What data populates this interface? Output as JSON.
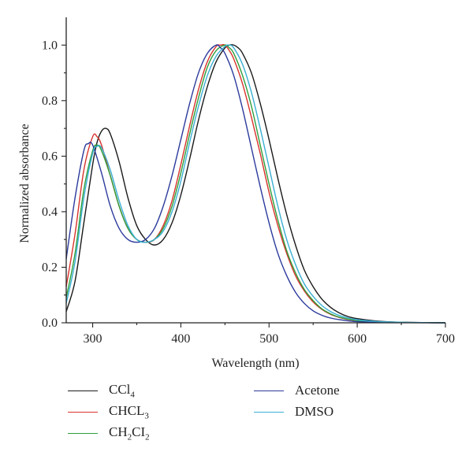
{
  "chart_data": {
    "type": "line",
    "xlabel": "Wavelength (nm)",
    "ylabel": "Normalized absorbance",
    "xlim": [
      270,
      700
    ],
    "ylim": [
      0,
      1.1
    ],
    "xticks": [
      300,
      400,
      500,
      600,
      700
    ],
    "yticks": [
      0.0,
      0.2,
      0.4,
      0.6,
      0.8,
      1.0
    ],
    "xtick_labels": [
      "300",
      "400",
      "500",
      "600",
      "700"
    ],
    "ytick_labels": [
      "0.0",
      "0.2",
      "0.4",
      "0.6",
      "0.8",
      "1.0"
    ],
    "grid": false,
    "legend_position": "below",
    "series": [
      {
        "name": "CCl4",
        "label_parts": [
          "CCl",
          "4",
          ""
        ],
        "color": "#1a1a1a",
        "x": [
          270,
          280,
          290,
          300,
          305,
          310,
          315,
          320,
          330,
          340,
          350,
          360,
          370,
          380,
          390,
          400,
          410,
          420,
          430,
          440,
          450,
          455,
          460,
          465,
          470,
          480,
          490,
          500,
          510,
          520,
          530,
          540,
          550,
          560,
          570,
          580,
          590,
          600,
          620,
          640,
          660,
          680,
          700
        ],
        "y": [
          0.04,
          0.15,
          0.36,
          0.57,
          0.65,
          0.69,
          0.7,
          0.68,
          0.58,
          0.45,
          0.35,
          0.3,
          0.28,
          0.3,
          0.36,
          0.46,
          0.59,
          0.73,
          0.85,
          0.94,
          0.99,
          1.0,
          1.0,
          0.99,
          0.97,
          0.9,
          0.79,
          0.66,
          0.52,
          0.39,
          0.28,
          0.19,
          0.13,
          0.085,
          0.055,
          0.035,
          0.022,
          0.015,
          0.007,
          0.003,
          0.0015,
          0.0005,
          0.0
        ]
      },
      {
        "name": "CHCL3",
        "label_parts": [
          "CHCL",
          "3",
          ""
        ],
        "color": "#d8342c",
        "x": [
          270,
          280,
          290,
          300,
          305,
          310,
          320,
          330,
          340,
          350,
          360,
          370,
          380,
          390,
          400,
          410,
          420,
          430,
          440,
          445,
          450,
          455,
          460,
          470,
          480,
          490,
          500,
          510,
          520,
          530,
          540,
          550,
          560,
          570,
          580,
          590,
          600,
          620,
          640,
          660,
          680,
          700
        ],
        "y": [
          0.13,
          0.32,
          0.55,
          0.67,
          0.67,
          0.64,
          0.53,
          0.42,
          0.34,
          0.3,
          0.29,
          0.3,
          0.35,
          0.44,
          0.57,
          0.71,
          0.84,
          0.94,
          0.995,
          1.0,
          1.0,
          0.98,
          0.95,
          0.86,
          0.74,
          0.61,
          0.47,
          0.35,
          0.25,
          0.17,
          0.115,
          0.075,
          0.048,
          0.03,
          0.019,
          0.012,
          0.008,
          0.004,
          0.002,
          0.001,
          0.0005,
          0.0
        ]
      },
      {
        "name": "CH2CI2",
        "label_parts": [
          "CH",
          "2",
          "CI",
          "2"
        ],
        "color": "#2e9e3a",
        "x": [
          270,
          280,
          290,
          300,
          305,
          310,
          320,
          330,
          340,
          350,
          360,
          370,
          380,
          390,
          400,
          410,
          420,
          430,
          440,
          450,
          455,
          460,
          470,
          480,
          490,
          500,
          510,
          520,
          530,
          540,
          550,
          560,
          570,
          580,
          590,
          600,
          620,
          640,
          660,
          680,
          700
        ],
        "y": [
          0.09,
          0.25,
          0.48,
          0.62,
          0.64,
          0.62,
          0.53,
          0.42,
          0.34,
          0.3,
          0.29,
          0.3,
          0.34,
          0.42,
          0.54,
          0.68,
          0.81,
          0.92,
          0.98,
          1.0,
          0.99,
          0.97,
          0.89,
          0.78,
          0.64,
          0.5,
          0.37,
          0.26,
          0.18,
          0.12,
          0.08,
          0.05,
          0.032,
          0.02,
          0.013,
          0.008,
          0.004,
          0.002,
          0.001,
          0.0005,
          0.0
        ]
      },
      {
        "name": "Acetone",
        "label_parts": [
          "Acetone"
        ],
        "color": "#2b3a9c",
        "x": [
          270,
          280,
          290,
          295,
          300,
          310,
          320,
          330,
          340,
          350,
          360,
          370,
          380,
          390,
          400,
          410,
          420,
          430,
          440,
          445,
          450,
          460,
          470,
          480,
          490,
          500,
          510,
          520,
          530,
          540,
          550,
          560,
          570,
          580,
          590,
          600,
          620,
          640,
          660,
          680,
          700
        ],
        "y": [
          0.23,
          0.45,
          0.62,
          0.645,
          0.64,
          0.54,
          0.42,
          0.34,
          0.3,
          0.29,
          0.3,
          0.34,
          0.42,
          0.53,
          0.66,
          0.79,
          0.9,
          0.97,
          1.0,
          0.99,
          0.97,
          0.89,
          0.77,
          0.63,
          0.49,
          0.36,
          0.25,
          0.17,
          0.11,
          0.07,
          0.043,
          0.027,
          0.017,
          0.011,
          0.007,
          0.004,
          0.002,
          0.001,
          0.0005,
          0.0002,
          0.0
        ]
      },
      {
        "name": "DMSO",
        "label_parts": [
          "DMSO"
        ],
        "color": "#3aaed4",
        "x": [
          270,
          280,
          290,
          300,
          305,
          310,
          320,
          330,
          340,
          350,
          360,
          370,
          380,
          390,
          400,
          410,
          420,
          430,
          440,
          450,
          455,
          460,
          470,
          480,
          490,
          500,
          510,
          520,
          530,
          540,
          550,
          560,
          570,
          580,
          590,
          600,
          620,
          640,
          660,
          680,
          700
        ],
        "y": [
          0.07,
          0.22,
          0.45,
          0.61,
          0.635,
          0.63,
          0.55,
          0.44,
          0.35,
          0.3,
          0.29,
          0.3,
          0.33,
          0.4,
          0.51,
          0.65,
          0.78,
          0.89,
          0.96,
          0.995,
          1.0,
          0.99,
          0.93,
          0.83,
          0.7,
          0.56,
          0.42,
          0.3,
          0.21,
          0.14,
          0.095,
          0.062,
          0.04,
          0.026,
          0.017,
          0.011,
          0.005,
          0.0025,
          0.0012,
          0.0005,
          0.0
        ]
      }
    ]
  }
}
